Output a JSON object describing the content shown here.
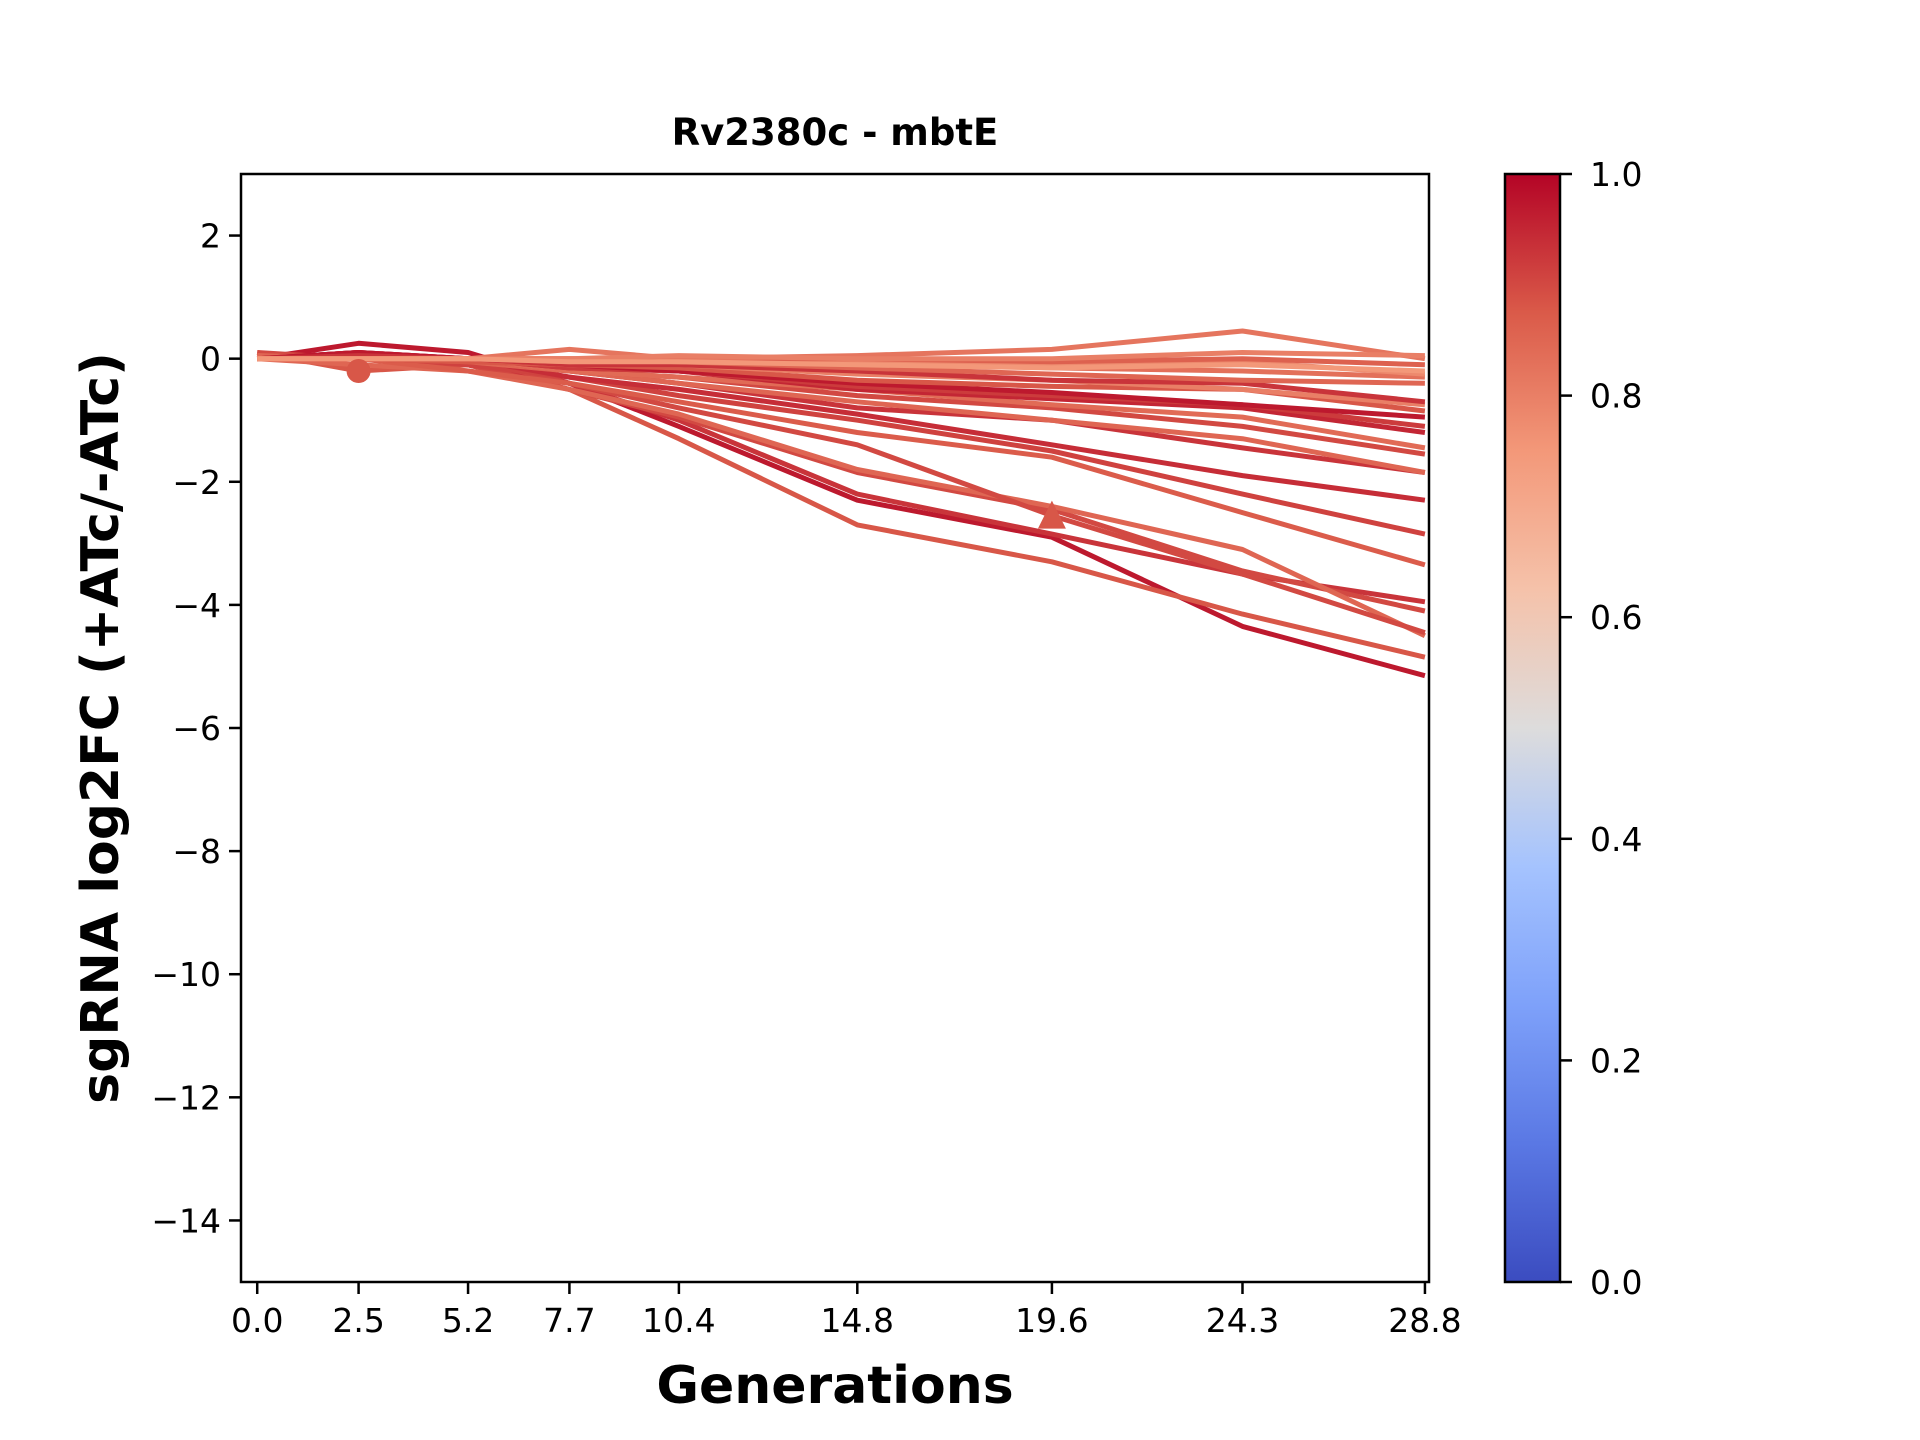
{
  "chart_data": {
    "type": "line",
    "title": "Rv2380c - mbtE",
    "xlabel": "Generations",
    "ylabel": "sgRNA log2FC (+ATc/-ATc)",
    "x": [
      0.0,
      2.5,
      5.2,
      7.7,
      10.4,
      14.8,
      19.6,
      24.3,
      28.8
    ],
    "x_tick_labels": [
      "0.0",
      "2.5",
      "5.2",
      "7.7",
      "10.4",
      "14.8",
      "19.6",
      "24.3",
      "28.8"
    ],
    "xlim": [
      -0.4,
      28.9
    ],
    "ylim": [
      -15,
      3
    ],
    "y_ticks": [
      2,
      0,
      -2,
      -4,
      -6,
      -8,
      -10,
      -12,
      -14
    ],
    "y_tick_labels": [
      "2",
      "0",
      "−2",
      "−4",
      "−6",
      "−8",
      "−10",
      "−12",
      "−14"
    ],
    "grid": false,
    "colorbar": {
      "colormap": "coolwarm",
      "range": [
        0.0,
        1.0
      ],
      "tick_labels": [
        "1.0",
        "0.8",
        "0.6",
        "0.4",
        "0.2",
        "0.0"
      ],
      "ticks": [
        1.0,
        0.8,
        0.6,
        0.4,
        0.2,
        0.0
      ]
    },
    "markers": [
      {
        "shape": "circle",
        "x": 2.5,
        "y": -0.2,
        "color_value": 0.88
      },
      {
        "shape": "triangle",
        "x": 19.6,
        "y": -2.55,
        "color_value": 0.88
      }
    ],
    "series": [
      {
        "color_value": 0.97,
        "values": [
          0.0,
          0.25,
          0.1,
          -0.4,
          -1.1,
          -2.3,
          -2.9,
          -4.35,
          -5.15
        ]
      },
      {
        "color_value": 0.88,
        "values": [
          0.1,
          -0.2,
          -0.1,
          -0.5,
          -1.3,
          -2.7,
          -3.3,
          -4.15,
          -4.85
        ]
      },
      {
        "color_value": 0.93,
        "values": [
          0.0,
          0.1,
          -0.1,
          -0.4,
          -1.0,
          -2.2,
          -2.85,
          -3.5,
          -3.95
        ]
      },
      {
        "color_value": 0.9,
        "values": [
          0.1,
          0.0,
          -0.1,
          -0.5,
          -0.95,
          -1.85,
          -2.45,
          -3.45,
          -4.1
        ]
      },
      {
        "color_value": 0.85,
        "values": [
          0.0,
          -0.1,
          -0.2,
          -0.5,
          -0.9,
          -1.8,
          -2.4,
          -3.1,
          -4.5
        ]
      },
      {
        "color_value": 0.9,
        "values": [
          0.0,
          0.05,
          0.0,
          -0.4,
          -0.8,
          -1.4,
          -2.55,
          -3.5,
          -4.45
        ]
      },
      {
        "color_value": 0.87,
        "values": [
          0.05,
          0.0,
          -0.2,
          -0.4,
          -0.7,
          -1.2,
          -1.6,
          -2.5,
          -3.35
        ]
      },
      {
        "color_value": 0.91,
        "values": [
          0.0,
          0.05,
          -0.1,
          -0.3,
          -0.6,
          -1.0,
          -1.5,
          -2.2,
          -2.85
        ]
      },
      {
        "color_value": 0.94,
        "values": [
          0.0,
          0.1,
          0.0,
          -0.3,
          -0.5,
          -0.9,
          -1.4,
          -1.9,
          -2.3
        ]
      },
      {
        "color_value": 0.93,
        "values": [
          0.0,
          0.0,
          -0.05,
          -0.2,
          -0.4,
          -0.8,
          -1.0,
          -1.45,
          -1.85
        ]
      },
      {
        "color_value": 0.85,
        "values": [
          0.05,
          0.0,
          -0.05,
          -0.2,
          -0.4,
          -0.7,
          -1.0,
          -1.3,
          -1.85
        ]
      },
      {
        "color_value": 0.9,
        "values": [
          0.0,
          0.0,
          0.0,
          -0.2,
          -0.3,
          -0.6,
          -0.8,
          -1.1,
          -1.55
        ]
      },
      {
        "color_value": 0.84,
        "values": [
          0.0,
          0.0,
          0.0,
          -0.2,
          -0.3,
          -0.5,
          -0.75,
          -0.95,
          -1.45
        ]
      },
      {
        "color_value": 0.95,
        "values": [
          0.0,
          0.1,
          0.0,
          -0.15,
          -0.2,
          -0.5,
          -0.65,
          -0.8,
          -1.2
        ]
      },
      {
        "color_value": 0.92,
        "values": [
          0.0,
          0.05,
          0.0,
          -0.15,
          -0.2,
          -0.45,
          -0.6,
          -0.75,
          -1.1
        ]
      },
      {
        "color_value": 0.97,
        "values": [
          0.0,
          0.1,
          0.0,
          -0.1,
          -0.2,
          -0.4,
          -0.55,
          -0.75,
          -0.95
        ]
      },
      {
        "color_value": 0.88,
        "values": [
          0.0,
          0.0,
          -0.05,
          -0.1,
          -0.15,
          -0.35,
          -0.45,
          -0.5,
          -0.85
        ]
      },
      {
        "color_value": 0.8,
        "values": [
          0.0,
          0.0,
          0.0,
          -0.1,
          -0.1,
          -0.25,
          -0.35,
          -0.5,
          -0.75
        ]
      },
      {
        "color_value": 0.93,
        "values": [
          0.0,
          0.05,
          0.0,
          -0.1,
          -0.1,
          -0.2,
          -0.35,
          -0.4,
          -0.7
        ]
      },
      {
        "color_value": 0.85,
        "values": [
          0.0,
          0.0,
          0.0,
          0.0,
          -0.05,
          -0.15,
          -0.25,
          -0.35,
          -0.4
        ]
      },
      {
        "color_value": 0.83,
        "values": [
          0.0,
          0.0,
          0.0,
          0.0,
          -0.05,
          -0.05,
          -0.15,
          -0.2,
          -0.3
        ]
      },
      {
        "color_value": 0.78,
        "values": [
          0.0,
          0.0,
          0.0,
          0.0,
          0.0,
          -0.05,
          -0.1,
          -0.05,
          -0.25
        ]
      },
      {
        "color_value": 0.86,
        "values": [
          0.0,
          0.0,
          0.0,
          -0.05,
          0.0,
          0.0,
          -0.05,
          0.0,
          -0.1
        ]
      },
      {
        "color_value": 0.82,
        "values": [
          0.0,
          0.0,
          0.0,
          0.15,
          0.0,
          0.05,
          0.15,
          0.45,
          0.0
        ]
      },
      {
        "color_value": 0.8,
        "values": [
          0.0,
          0.0,
          0.0,
          0.0,
          0.05,
          0.0,
          0.0,
          0.1,
          0.05
        ]
      },
      {
        "color_value": 0.75,
        "values": [
          0.0,
          0.0,
          0.0,
          -0.05,
          -0.05,
          -0.1,
          -0.15,
          -0.1,
          -0.2
        ]
      }
    ]
  }
}
